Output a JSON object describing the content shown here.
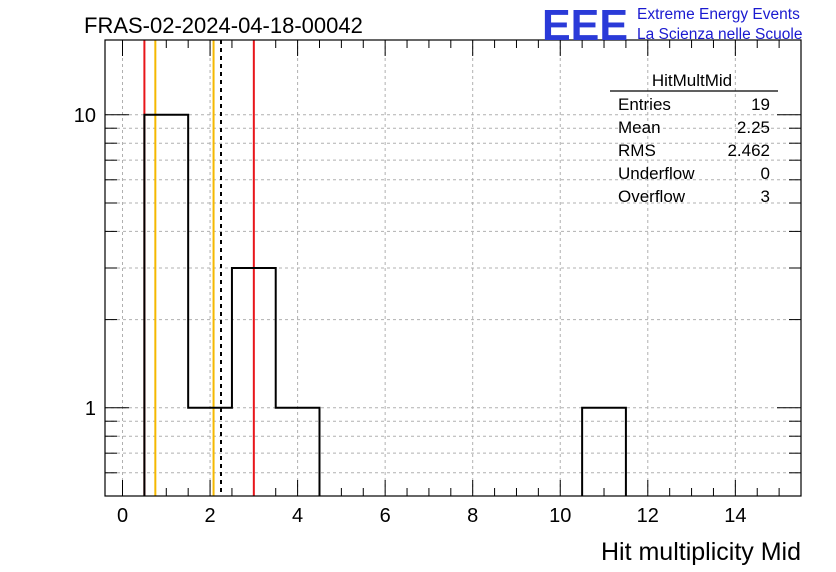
{
  "title": "FRAS-02-2024-04-18-00042",
  "logo": {
    "letters": "EEE",
    "line1": "Extreme Energy Events",
    "line2": "La Scienza nelle Scuole",
    "color": "#2a3ad8"
  },
  "stats_box": {
    "name": "HitMultMid",
    "rows": [
      {
        "label": "Entries",
        "value": "19"
      },
      {
        "label": "Mean",
        "value": "2.25"
      },
      {
        "label": "RMS",
        "value": "2.462"
      },
      {
        "label": "Underflow",
        "value": "0"
      },
      {
        "label": "Overflow",
        "value": "3"
      }
    ]
  },
  "chart_data": {
    "type": "bar",
    "histogram": true,
    "xlabel": "Hit multiplicity Mid",
    "ylabel": "",
    "xlim": [
      -0.4,
      15.5
    ],
    "ylim": [
      0.5,
      18
    ],
    "log_y": true,
    "grid": true,
    "x_ticks": [
      0,
      2,
      4,
      6,
      8,
      10,
      12,
      14
    ],
    "y_ticks": [
      1,
      10
    ],
    "bins": [
      {
        "low": 0.5,
        "high": 1.5,
        "count": 10
      },
      {
        "low": 1.5,
        "high": 2.5,
        "count": 1
      },
      {
        "low": 2.5,
        "high": 3.5,
        "count": 3
      },
      {
        "low": 3.5,
        "high": 4.5,
        "count": 1
      },
      {
        "low": 10.5,
        "high": 11.5,
        "count": 1
      }
    ],
    "vertical_lines": [
      {
        "x": 0.5,
        "color": "#e8151a",
        "style": "solid"
      },
      {
        "x": 0.75,
        "color": "#f5b800",
        "style": "solid"
      },
      {
        "x": 2.08,
        "color": "#f5b800",
        "style": "solid"
      },
      {
        "x": 2.25,
        "color": "#000000",
        "style": "dashed"
      },
      {
        "x": 3.0,
        "color": "#e8151a",
        "style": "solid"
      }
    ]
  }
}
